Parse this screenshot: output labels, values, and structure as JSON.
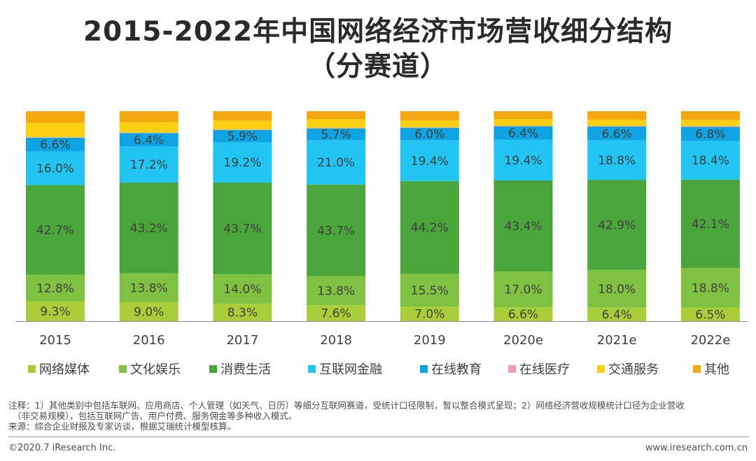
{
  "header": {
    "title_line1": "2015-2022年中国网络经济市场营收细分结构",
    "title_line2": "（分赛道）"
  },
  "chart_data": {
    "type": "bar",
    "stacked": true,
    "categories": [
      "2015",
      "2016",
      "2017",
      "2018",
      "2019",
      "2020e",
      "2021e",
      "2022e"
    ],
    "series": [
      {
        "name": "网络媒体",
        "color": "#a8cf3a",
        "values": [
          9.3,
          9.0,
          8.3,
          7.6,
          7.0,
          6.6,
          6.4,
          6.5
        ],
        "labels": [
          "9.3%",
          "9.0%",
          "8.3%",
          "7.6%",
          "7.0%",
          "6.6%",
          "6.4%",
          "6.5%"
        ]
      },
      {
        "name": "文化娱乐",
        "color": "#7fc242",
        "values": [
          12.8,
          13.8,
          14.0,
          13.8,
          15.5,
          17.0,
          18.0,
          18.8
        ],
        "labels": [
          "12.8%",
          "13.8%",
          "14.0%",
          "13.8%",
          "15.5%",
          "17.0%",
          "18.0%",
          "18.8%"
        ]
      },
      {
        "name": "消费生活",
        "color": "#4aa63a",
        "values": [
          42.7,
          43.2,
          43.7,
          43.7,
          44.2,
          43.4,
          42.9,
          42.1
        ],
        "labels": [
          "42.7%",
          "43.2%",
          "43.7%",
          "43.7%",
          "44.2%",
          "43.4%",
          "42.9%",
          "42.1%"
        ]
      },
      {
        "name": "互联网金融",
        "color": "#21c4f3",
        "values": [
          16.0,
          17.2,
          19.2,
          21.0,
          19.4,
          19.4,
          18.8,
          18.4
        ],
        "labels": [
          "16.0%",
          "17.2%",
          "19.2%",
          "21.0%",
          "19.4%",
          "19.4%",
          "18.8%",
          "18.4%"
        ]
      },
      {
        "name": "在线教育",
        "color": "#0ea3e3",
        "values": [
          6.6,
          6.4,
          5.9,
          5.7,
          6.0,
          6.4,
          6.6,
          6.8
        ],
        "labels": [
          "6.6%",
          "6.4%",
          "5.9%",
          "5.7%",
          "6.0%",
          "6.4%",
          "6.6%",
          "6.8%"
        ]
      },
      {
        "name": "在线医疗",
        "color": "#f19fb0",
        "values": [
          0.2,
          0.2,
          0.2,
          0.2,
          0.2,
          0.2,
          0.3,
          0.3
        ],
        "labels": []
      },
      {
        "name": "交通服务",
        "color": "#fbcf12",
        "values": [
          6.8,
          4.9,
          4.3,
          4.2,
          3.3,
          3.2,
          3.0,
          3.0
        ],
        "labels": []
      },
      {
        "name": "其他",
        "color": "#f4a80f",
        "values": [
          5.6,
          5.3,
          4.4,
          3.8,
          4.4,
          3.8,
          4.0,
          4.1
        ],
        "labels": []
      }
    ],
    "ylim": [
      0,
      100
    ],
    "grid": false,
    "legend_position": "bottom"
  },
  "footnotes": {
    "note_line1": "注释：1）其他类别中包括车联网、应用商店、个人管理（如天气、日历）等细分互联网赛道，受统计口径限制，暂以整合模式呈现；2）网络经济营收规模统计口径为企业营收",
    "note_line2": "（非交易规模），包括互联网广告、用户付费、服务佣金等多种收入模式。",
    "source": "来源：综合企业财报及专家访谈，根据艾瑞统计模型核算。"
  },
  "footer": {
    "copyright": "©2020.7 iResearch Inc.",
    "website": "www.iresearch.com.cn"
  }
}
